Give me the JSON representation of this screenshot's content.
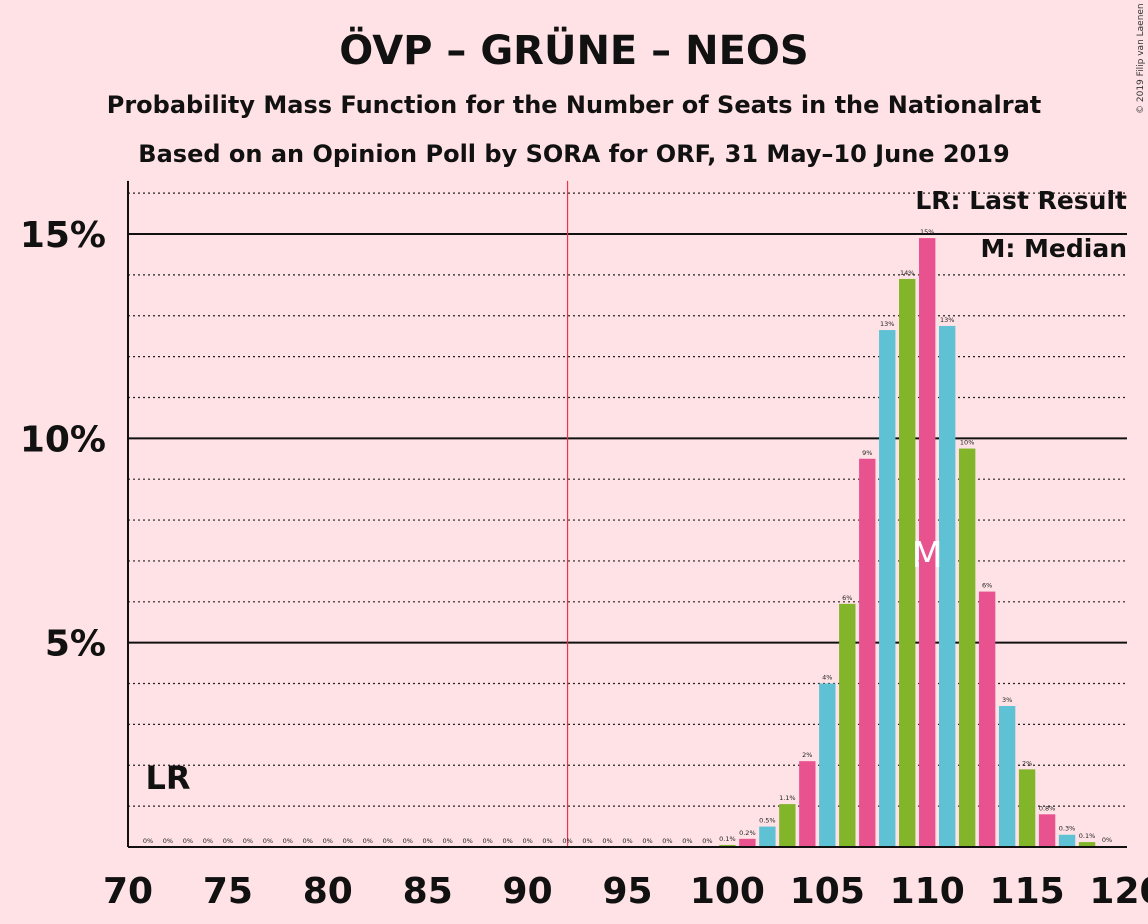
{
  "chart_data": {
    "type": "bar",
    "title": "ÖVP – GRÜNE – NEOS",
    "subtitle": "Probability Mass Function for the Number of Seats in the Nationalrat",
    "subtitle2": "Based on an Opinion Poll by SORA for ORF, 31 May–10 June 2019",
    "copyright": "© 2019 Filip van Laenen",
    "legend": {
      "lr": "LR: Last Result",
      "m": "M: Median",
      "placement": "top-right"
    },
    "x": [
      71,
      72,
      73,
      74,
      75,
      76,
      77,
      78,
      79,
      80,
      81,
      82,
      83,
      84,
      85,
      86,
      87,
      88,
      89,
      90,
      91,
      92,
      93,
      94,
      95,
      96,
      97,
      98,
      99,
      100,
      101,
      102,
      103,
      104,
      105,
      106,
      107,
      108,
      109,
      110,
      111,
      112,
      113,
      114,
      115,
      116,
      117,
      118,
      119
    ],
    "values": [
      0,
      0,
      0,
      0,
      0,
      0,
      0,
      0,
      0,
      0,
      0,
      0,
      0,
      0,
      0,
      0,
      0,
      0,
      0,
      0,
      0,
      0,
      0,
      0,
      0,
      0,
      0,
      0,
      0,
      0.05,
      0.2,
      0.5,
      1.05,
      2.1,
      4.0,
      5.95,
      9.5,
      12.65,
      13.9,
      14.9,
      12.75,
      9.75,
      6.25,
      3.45,
      1.9,
      0.8,
      0.3,
      0.12,
      0.02
    ],
    "labels": [
      "0%",
      "0%",
      "0%",
      "0%",
      "0%",
      "0%",
      "0%",
      "0%",
      "0%",
      "0%",
      "0%",
      "0%",
      "0%",
      "0%",
      "0%",
      "0%",
      "0%",
      "0%",
      "0%",
      "0%",
      "0%",
      "0%",
      "0%",
      "0%",
      "0%",
      "0%",
      "0%",
      "0%",
      "0%",
      "0.1%",
      "0.2%",
      "0.5%",
      "1.1%",
      "2%",
      "4%",
      "6%",
      "9%",
      "13%",
      "14%",
      "15%",
      "13%",
      "10%",
      "6%",
      "3%",
      "2%",
      "0.8%",
      "0.3%",
      "0.1%",
      "0%"
    ],
    "xticks": [
      70,
      75,
      80,
      85,
      90,
      95,
      100,
      105,
      110,
      115,
      120
    ],
    "yticks": [
      {
        "value": 5,
        "label": "5%"
      },
      {
        "value": 10,
        "label": "10%"
      },
      {
        "value": 15,
        "label": "15%"
      }
    ],
    "xlim": [
      70,
      120
    ],
    "ylim": [
      0,
      16.3
    ],
    "majority_line": 92,
    "last_result": {
      "seat": 72,
      "label": "LR"
    },
    "median": {
      "seat": 110,
      "label": "M"
    },
    "colors": [
      "#e8538f",
      "#5fc2d4",
      "#83b52b"
    ],
    "majority_color": "#e8334a",
    "grid": true
  }
}
